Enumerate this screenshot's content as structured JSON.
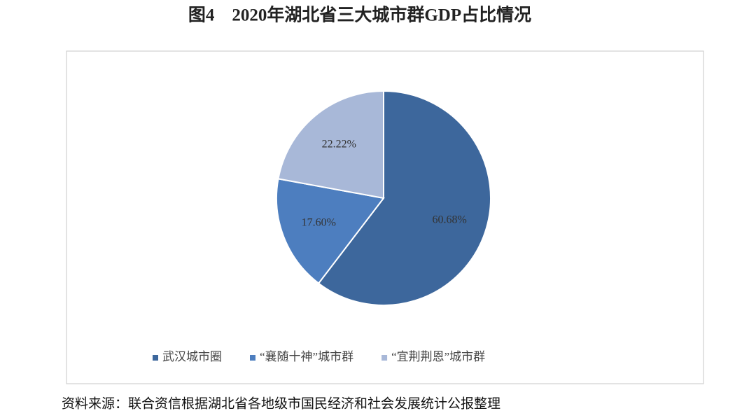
{
  "chart_data": {
    "type": "pie",
    "title": "图4　2020年湖北省三大城市群GDP占比情况",
    "categories": [
      "武汉城市圈",
      "“襄随十神”城市群",
      "“宜荆荆恩”城市群"
    ],
    "values": [
      60.68,
      17.6,
      22.22
    ],
    "value_labels": [
      "60.68%",
      "17.60%",
      "22.22%"
    ],
    "colors": [
      "#3d679c",
      "#4d7ebf",
      "#a8b8d8"
    ],
    "legend": "bottom",
    "source": "资料来源：联合资信根据湖北省各地级市国民经济和社会发展统计公报整理"
  }
}
